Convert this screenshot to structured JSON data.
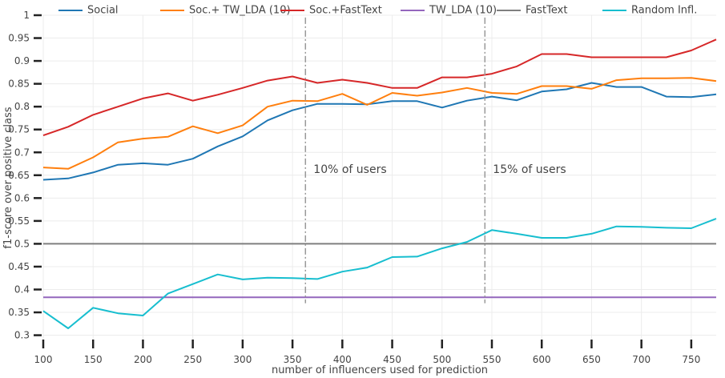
{
  "chart_data": {
    "type": "line",
    "title": "",
    "xlabel": "number of influencers used for prediction",
    "ylabel": "f1-score over positive class",
    "xlim": [
      100,
      775
    ],
    "ylim": [
      0.28,
      1.0
    ],
    "xticks": [
      100,
      150,
      200,
      250,
      300,
      350,
      400,
      450,
      500,
      550,
      600,
      650,
      700,
      750
    ],
    "yticks": [
      0.3,
      0.35,
      0.4,
      0.45,
      0.5,
      0.55,
      0.6,
      0.65,
      0.7,
      0.75,
      0.8,
      0.85,
      0.9,
      0.95,
      1
    ],
    "grid": true,
    "legend_position": "top",
    "x": [
      100,
      125,
      150,
      175,
      200,
      225,
      250,
      275,
      300,
      325,
      350,
      375,
      400,
      425,
      450,
      475,
      500,
      525,
      550,
      575,
      600,
      625,
      650,
      675,
      700,
      725,
      750,
      775
    ],
    "series": [
      {
        "name": "Social",
        "color": "#1f77b4",
        "values": [
          0.64,
          0.643,
          0.656,
          0.673,
          0.676,
          0.673,
          0.686,
          0.713,
          0.735,
          0.77,
          0.792,
          0.806,
          0.806,
          0.805,
          0.812,
          0.812,
          0.798,
          0.813,
          0.822,
          0.814,
          0.833,
          0.838,
          0.852,
          0.843,
          0.843,
          0.822,
          0.821,
          0.827
        ]
      },
      {
        "name": "Soc.+ TW_LDA (10)",
        "color": "#ff7f0e",
        "values": [
          0.667,
          0.664,
          0.689,
          0.722,
          0.73,
          0.734,
          0.757,
          0.742,
          0.759,
          0.8,
          0.813,
          0.812,
          0.828,
          0.804,
          0.83,
          0.824,
          0.831,
          0.841,
          0.83,
          0.828,
          0.845,
          0.845,
          0.839,
          0.858,
          0.862,
          0.862,
          0.863,
          0.856
        ]
      },
      {
        "name": "Soc.+FastText",
        "color": "#d62728",
        "values": [
          0.737,
          0.756,
          0.782,
          0.8,
          0.818,
          0.829,
          0.813,
          0.826,
          0.841,
          0.857,
          0.866,
          0.852,
          0.859,
          0.852,
          0.841,
          0.841,
          0.864,
          0.864,
          0.872,
          0.888,
          0.915,
          0.915,
          0.908,
          0.908,
          0.908,
          0.908,
          0.923,
          0.947
        ]
      },
      {
        "name": "TW_LDA (10)",
        "color": "#9467bd",
        "values": [
          0.383,
          0.383,
          0.383,
          0.383,
          0.383,
          0.383,
          0.383,
          0.383,
          0.383,
          0.383,
          0.383,
          0.383,
          0.383,
          0.383,
          0.383,
          0.383,
          0.383,
          0.383,
          0.383,
          0.383,
          0.383,
          0.383,
          0.383,
          0.383,
          0.383,
          0.383,
          0.383,
          0.383
        ]
      },
      {
        "name": "FastText",
        "color": "#7f7f7f",
        "values": [
          0.5,
          0.5,
          0.5,
          0.5,
          0.5,
          0.5,
          0.5,
          0.5,
          0.5,
          0.5,
          0.5,
          0.5,
          0.5,
          0.5,
          0.5,
          0.5,
          0.5,
          0.5,
          0.5,
          0.5,
          0.5,
          0.5,
          0.5,
          0.5,
          0.5,
          0.5,
          0.5,
          0.5
        ]
      },
      {
        "name": "Random Infl.",
        "color": "#17becf",
        "values": [
          0.353,
          0.315,
          0.36,
          0.348,
          0.343,
          0.391,
          0.412,
          0.433,
          0.422,
          0.426,
          0.425,
          0.423,
          0.439,
          0.448,
          0.471,
          0.472,
          0.49,
          0.504,
          0.53,
          0.522,
          0.513,
          0.513,
          0.522,
          0.538,
          0.537,
          0.535,
          0.534,
          0.555
        ]
      }
    ],
    "annotations": [
      {
        "text": "10% of users",
        "x": 363,
        "label_y": 0.662
      },
      {
        "text": "15% of users",
        "x": 543,
        "label_y": 0.662
      }
    ]
  }
}
